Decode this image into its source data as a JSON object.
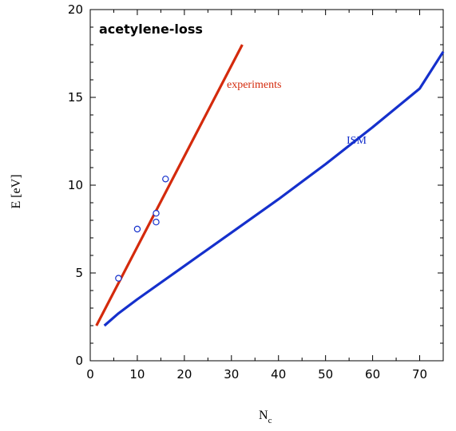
{
  "chart_data": {
    "type": "line",
    "title": "acetylene-loss",
    "xlabel": "N",
    "xlabel_sub": "c",
    "ylabel": "E  [eV]",
    "xlim": [
      0,
      75
    ],
    "ylim": [
      0,
      20
    ],
    "x_ticks": [
      0,
      10,
      20,
      30,
      40,
      50,
      60,
      70
    ],
    "y_ticks": [
      0,
      5,
      10,
      15,
      20
    ],
    "grid": false,
    "series": [
      {
        "name": "experiments",
        "type": "line",
        "color": "#d42a0c",
        "points": [
          [
            1.3,
            2.0
          ],
          [
            32.3,
            18.0
          ]
        ]
      },
      {
        "name": "ISM",
        "type": "line",
        "color": "#1530cc",
        "points": [
          [
            3.0,
            2.0
          ],
          [
            6.0,
            2.7
          ],
          [
            10.0,
            3.5
          ],
          [
            20.0,
            5.4
          ],
          [
            30.0,
            7.3
          ],
          [
            40.0,
            9.2
          ],
          [
            50.0,
            11.2
          ],
          [
            60.0,
            13.3
          ],
          [
            70.0,
            15.5
          ],
          [
            75.0,
            17.6
          ]
        ]
      },
      {
        "name": "",
        "type": "scatter",
        "color": "#1530cc",
        "points": [
          [
            6.0,
            4.7
          ],
          [
            10.0,
            7.5
          ],
          [
            14.0,
            8.4
          ],
          [
            14.0,
            7.9
          ],
          [
            16.0,
            10.35
          ]
        ]
      }
    ]
  }
}
